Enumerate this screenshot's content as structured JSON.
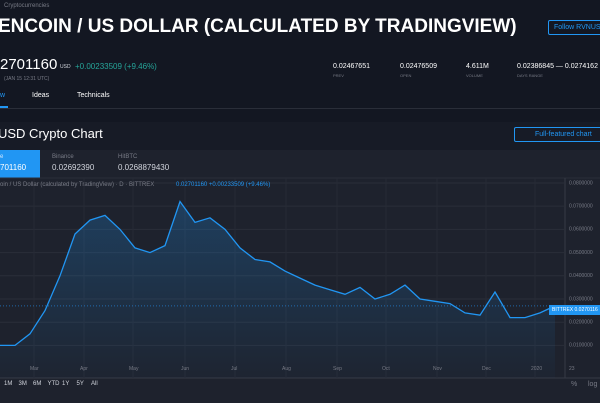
{
  "header": {
    "breadcrumb": "Cryptocurrencies",
    "title": "ENCOIN / US DOLLAR (CALCULATED BY TRADINGVIEW)",
    "follow_button": "Follow RVNUSD"
  },
  "quote": {
    "price": "2701160",
    "currency": "USD",
    "change": "+0.00233509 (+9.46%)",
    "time": "(JAN 15 12:31 UTC)",
    "stats": [
      {
        "value": "0.02467651",
        "label": "PREV"
      },
      {
        "value": "0.02476509",
        "label": "OPEN"
      },
      {
        "value": "4.611M",
        "label": "VOLUME"
      },
      {
        "value": "0.02386845 — 0.0274162",
        "label": "DAYS RANGE"
      }
    ]
  },
  "tabs": [
    "w",
    "Ideas",
    "Technicals"
  ],
  "section": {
    "title": "USD Crypto Chart",
    "button": "Full-featured chart"
  },
  "exchanges": [
    {
      "name": "e",
      "price": "701160"
    },
    {
      "name": "Binance",
      "price": "0.02692390"
    },
    {
      "name": "HitBTC",
      "price": "0.0268879430"
    }
  ],
  "chart": {
    "type": "line",
    "legend": "oin / US Dollar (calculated by TradingView) · D · BITTREX",
    "legend_values": "0.02701160 +0.00233509 (+9.46%)",
    "values": [
      0.01,
      0.01,
      0.015,
      0.025,
      0.04,
      0.058,
      0.064,
      0.066,
      0.06,
      0.052,
      0.05,
      0.053,
      0.072,
      0.063,
      0.065,
      0.06,
      0.052,
      0.047,
      0.046,
      0.042,
      0.039,
      0.036,
      0.034,
      0.032,
      0.035,
      0.03,
      0.032,
      0.036,
      0.03,
      0.029,
      0.028,
      0.024,
      0.023,
      0.033,
      0.022,
      0.022,
      0.024,
      0.0270116
    ],
    "color": "#2196f3",
    "ylim": [
      0.005,
      0.083
    ],
    "yticks": [
      {
        "value": 0.08,
        "label": "0.0800000"
      },
      {
        "value": 0.07,
        "label": "0.0700000"
      },
      {
        "value": 0.06,
        "label": "0.0600000"
      },
      {
        "value": 0.05,
        "label": "0.0500000"
      },
      {
        "value": 0.04,
        "label": "0.0400000"
      },
      {
        "value": 0.03,
        "label": "0.0300000"
      },
      {
        "value": 0.02,
        "label": "0.0200000"
      },
      {
        "value": 0.01,
        "label": "0.0100000"
      }
    ],
    "x_labels": [
      "Mar",
      "Apr",
      "May",
      "Jun",
      "Jul",
      "Aug",
      "Sep",
      "Oct",
      "Nov",
      "Dec",
      "2020",
      "23"
    ],
    "price_tag": {
      "exchange": "BITTREX",
      "price": "0.0270116"
    },
    "grid": true
  },
  "timeframes": [
    "1M",
    "3M",
    "6M",
    "YTD",
    "1Y",
    "5Y",
    "All"
  ],
  "scale_options": [
    "%",
    "log"
  ]
}
